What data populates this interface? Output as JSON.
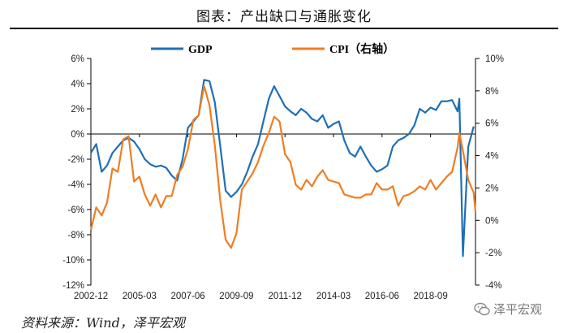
{
  "title": "图表：产出缺口与通胀变化",
  "source": "资料来源：Wind，泽平宏观",
  "watermark": "泽平宏观",
  "colors": {
    "gdp": "#1f6fb5",
    "cpi": "#ef7d22",
    "axis": "#000000"
  },
  "chart_data": {
    "type": "line",
    "x_tick_labels": [
      "2002-12",
      "2005-03",
      "2007-06",
      "2009-09",
      "2011-12",
      "2014-03",
      "2016-06",
      "2018-09"
    ],
    "left_axis": {
      "ticks": [
        "-12%",
        "-10%",
        "-8%",
        "-6%",
        "-4%",
        "-2%",
        "0%",
        "2%",
        "4%",
        "6%"
      ],
      "ylim": [
        -12,
        6
      ]
    },
    "right_axis": {
      "ticks": [
        "-4%",
        "-2%",
        "0%",
        "2%",
        "4%",
        "6%",
        "8%",
        "10%"
      ],
      "ylim": [
        -4,
        10
      ]
    },
    "series": [
      {
        "name": "GDP",
        "axis": "left",
        "points": [
          [
            "2002-12",
            -1.5
          ],
          [
            "2003-03",
            -0.8
          ],
          [
            "2003-06",
            -3.0
          ],
          [
            "2003-09",
            -2.5
          ],
          [
            "2003-12",
            -1.5
          ],
          [
            "2004-03",
            -1.0
          ],
          [
            "2004-06",
            -0.5
          ],
          [
            "2004-09",
            -0.3
          ],
          [
            "2004-12",
            -0.6
          ],
          [
            "2005-03",
            -1.2
          ],
          [
            "2005-06",
            -2.0
          ],
          [
            "2005-09",
            -2.4
          ],
          [
            "2005-12",
            -2.6
          ],
          [
            "2006-03",
            -2.5
          ],
          [
            "2006-06",
            -2.7
          ],
          [
            "2006-09",
            -3.3
          ],
          [
            "2006-12",
            -3.7
          ],
          [
            "2007-03",
            -2.0
          ],
          [
            "2007-06",
            0.5
          ],
          [
            "2007-09",
            1.0
          ],
          [
            "2007-12",
            1.5
          ],
          [
            "2008-03",
            4.3
          ],
          [
            "2008-06",
            4.2
          ],
          [
            "2008-09",
            2.5
          ],
          [
            "2008-12",
            -1.0
          ],
          [
            "2009-03",
            -4.5
          ],
          [
            "2009-06",
            -5.0
          ],
          [
            "2009-09",
            -4.6
          ],
          [
            "2009-12",
            -4.0
          ],
          [
            "2010-03",
            -3.0
          ],
          [
            "2010-06",
            -1.8
          ],
          [
            "2010-09",
            -0.8
          ],
          [
            "2010-12",
            1.0
          ],
          [
            "2011-03",
            2.8
          ],
          [
            "2011-06",
            3.8
          ],
          [
            "2011-09",
            3.0
          ],
          [
            "2011-12",
            2.2
          ],
          [
            "2012-03",
            1.8
          ],
          [
            "2012-06",
            1.5
          ],
          [
            "2012-09",
            2.0
          ],
          [
            "2012-12",
            1.7
          ],
          [
            "2013-03",
            1.2
          ],
          [
            "2013-06",
            1.0
          ],
          [
            "2013-09",
            1.5
          ],
          [
            "2013-12",
            0.5
          ],
          [
            "2014-03",
            0.8
          ],
          [
            "2014-06",
            1.0
          ],
          [
            "2014-09",
            -0.5
          ],
          [
            "2014-12",
            -1.5
          ],
          [
            "2015-03",
            -1.8
          ],
          [
            "2015-06",
            -1.0
          ],
          [
            "2015-09",
            -1.8
          ],
          [
            "2015-12",
            -2.5
          ],
          [
            "2016-03",
            -3.0
          ],
          [
            "2016-06",
            -2.8
          ],
          [
            "2016-09",
            -2.5
          ],
          [
            "2016-12",
            -1.0
          ],
          [
            "2017-03",
            -0.5
          ],
          [
            "2017-06",
            -0.3
          ],
          [
            "2017-09",
            0.0
          ],
          [
            "2017-12",
            0.7
          ],
          [
            "2018-03",
            2.0
          ],
          [
            "2018-06",
            1.7
          ],
          [
            "2018-09",
            2.1
          ],
          [
            "2018-12",
            1.9
          ],
          [
            "2019-03",
            2.6
          ],
          [
            "2019-06",
            2.6
          ],
          [
            "2019-09",
            2.7
          ],
          [
            "2019-12",
            1.8
          ],
          [
            "2020-01",
            2.8
          ],
          [
            "2020-03",
            -9.7
          ],
          [
            "2020-06",
            -1.0
          ],
          [
            "2020-09",
            0.6
          ]
        ]
      },
      {
        "name": "CPI（右轴）",
        "axis": "right",
        "points": [
          [
            "2002-12",
            -0.6
          ],
          [
            "2003-03",
            0.8
          ],
          [
            "2003-06",
            0.3
          ],
          [
            "2003-09",
            1.1
          ],
          [
            "2003-12",
            3.2
          ],
          [
            "2004-03",
            3.0
          ],
          [
            "2004-06",
            5.0
          ],
          [
            "2004-09",
            5.2
          ],
          [
            "2004-12",
            2.4
          ],
          [
            "2005-03",
            2.7
          ],
          [
            "2005-06",
            1.6
          ],
          [
            "2005-09",
            0.9
          ],
          [
            "2005-12",
            1.6
          ],
          [
            "2006-03",
            0.8
          ],
          [
            "2006-06",
            1.5
          ],
          [
            "2006-09",
            1.5
          ],
          [
            "2006-12",
            2.8
          ],
          [
            "2007-03",
            3.3
          ],
          [
            "2007-06",
            4.4
          ],
          [
            "2007-09",
            6.2
          ],
          [
            "2007-12",
            6.5
          ],
          [
            "2008-03",
            8.3
          ],
          [
            "2008-06",
            7.1
          ],
          [
            "2008-09",
            4.6
          ],
          [
            "2008-12",
            1.2
          ],
          [
            "2009-03",
            -1.2
          ],
          [
            "2009-06",
            -1.7
          ],
          [
            "2009-09",
            -0.8
          ],
          [
            "2009-12",
            1.9
          ],
          [
            "2010-03",
            2.4
          ],
          [
            "2010-06",
            2.9
          ],
          [
            "2010-09",
            3.6
          ],
          [
            "2010-12",
            4.6
          ],
          [
            "2011-03",
            5.4
          ],
          [
            "2011-06",
            6.4
          ],
          [
            "2011-09",
            6.1
          ],
          [
            "2011-12",
            4.1
          ],
          [
            "2012-03",
            3.6
          ],
          [
            "2012-06",
            2.2
          ],
          [
            "2012-09",
            1.9
          ],
          [
            "2012-12",
            2.5
          ],
          [
            "2013-03",
            2.1
          ],
          [
            "2013-06",
            2.7
          ],
          [
            "2013-09",
            3.1
          ],
          [
            "2013-12",
            2.5
          ],
          [
            "2014-03",
            2.4
          ],
          [
            "2014-06",
            2.3
          ],
          [
            "2014-09",
            1.6
          ],
          [
            "2014-12",
            1.5
          ],
          [
            "2015-03",
            1.4
          ],
          [
            "2015-06",
            1.4
          ],
          [
            "2015-09",
            1.6
          ],
          [
            "2015-12",
            1.6
          ],
          [
            "2016-03",
            2.3
          ],
          [
            "2016-06",
            1.9
          ],
          [
            "2016-09",
            1.9
          ],
          [
            "2016-12",
            2.1
          ],
          [
            "2017-03",
            0.9
          ],
          [
            "2017-06",
            1.5
          ],
          [
            "2017-09",
            1.6
          ],
          [
            "2017-12",
            1.8
          ],
          [
            "2018-03",
            2.1
          ],
          [
            "2018-06",
            1.9
          ],
          [
            "2018-09",
            2.5
          ],
          [
            "2018-12",
            1.9
          ],
          [
            "2019-03",
            2.3
          ],
          [
            "2019-06",
            2.7
          ],
          [
            "2019-09",
            3.0
          ],
          [
            "2019-12",
            4.5
          ],
          [
            "2020-01",
            5.4
          ],
          [
            "2020-03",
            4.3
          ],
          [
            "2020-06",
            2.5
          ],
          [
            "2020-09",
            1.7
          ],
          [
            "2020-10",
            0.5
          ]
        ]
      }
    ],
    "grid": false,
    "zero_line": true,
    "legend": "top"
  }
}
